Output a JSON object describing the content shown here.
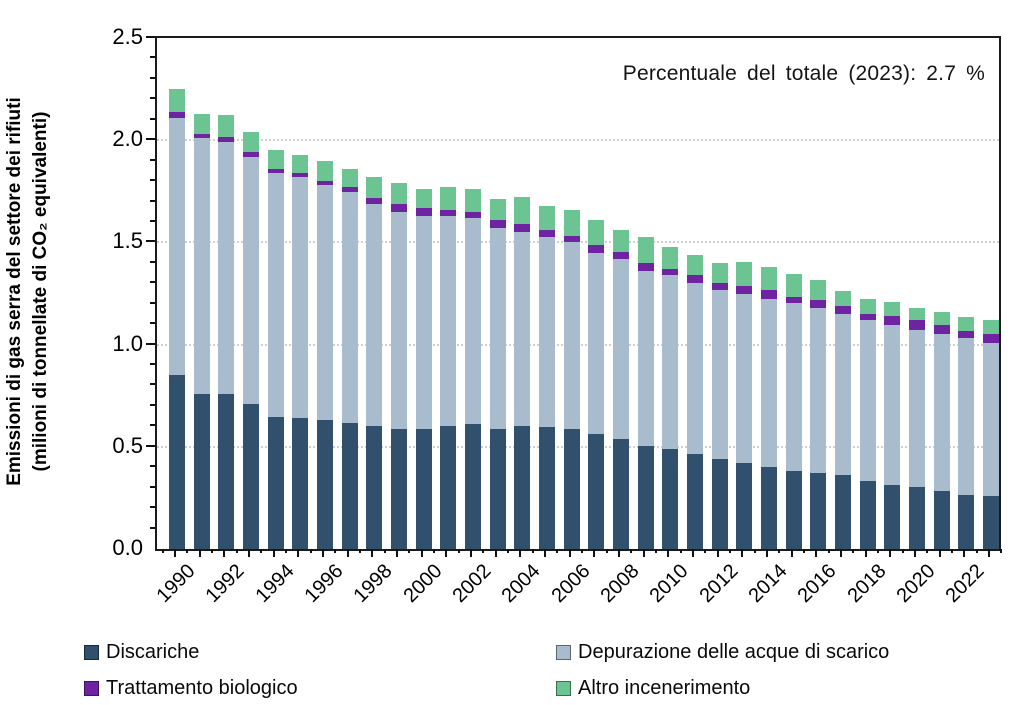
{
  "figure": {
    "ylabel_line1": "Emissioni di gas serra del settore dei rifiuti",
    "ylabel_line2": "(milioni di tonnellate di CO₂ equivalenti)"
  },
  "chart_data": {
    "type": "bar",
    "stacked": true,
    "title": "",
    "annotation": "Percentuale del totale (2023): 2.7 %",
    "ylabel": "Emissioni di gas serra del settore dei rifiuti (milioni di tonnellate di CO₂ equivalenti)",
    "xlabel": "",
    "ylim": [
      0,
      2.5
    ],
    "ytick_labels": [
      "0.0",
      "0.5",
      "1.0",
      "1.5",
      "2.0",
      "2.5"
    ],
    "ytick_major_step": 0.5,
    "ytick_minor_step": 0.1,
    "grid": "horizontal-dotted",
    "legend_position": "bottom",
    "categories": [
      1990,
      1991,
      1992,
      1993,
      1994,
      1995,
      1996,
      1997,
      1998,
      1999,
      2000,
      2001,
      2002,
      2003,
      2004,
      2005,
      2006,
      2007,
      2008,
      2009,
      2010,
      2011,
      2012,
      2013,
      2014,
      2015,
      2016,
      2017,
      2018,
      2019,
      2020,
      2021,
      2022,
      2023
    ],
    "xtick_labels": [
      "1990",
      "1992",
      "1994",
      "1996",
      "1998",
      "2000",
      "2002",
      "2004",
      "2006",
      "2008",
      "2010",
      "2012",
      "2014",
      "2016",
      "2018",
      "2020",
      "2022"
    ],
    "series": [
      {
        "name": "Discariche",
        "color": "#30506E",
        "values": [
          0.85,
          0.76,
          0.76,
          0.71,
          0.645,
          0.64,
          0.63,
          0.615,
          0.6,
          0.585,
          0.585,
          0.6,
          0.61,
          0.585,
          0.6,
          0.595,
          0.585,
          0.565,
          0.54,
          0.505,
          0.49,
          0.465,
          0.44,
          0.42,
          0.4,
          0.38,
          0.37,
          0.36,
          0.335,
          0.315,
          0.305,
          0.285,
          0.265,
          0.26
        ]
      },
      {
        "name": "Depurazione delle acque di scarico",
        "color": "#A8BCCE",
        "values": [
          1.26,
          1.25,
          1.23,
          1.21,
          1.195,
          1.18,
          1.15,
          1.13,
          1.09,
          1.065,
          1.045,
          1.03,
          1.01,
          0.985,
          0.95,
          0.93,
          0.915,
          0.885,
          0.88,
          0.855,
          0.85,
          0.835,
          0.825,
          0.83,
          0.825,
          0.825,
          0.81,
          0.79,
          0.785,
          0.78,
          0.765,
          0.765,
          0.765,
          0.75
        ]
      },
      {
        "name": "Trattamento biologico",
        "color": "#6E23A0",
        "values": [
          0.03,
          0.02,
          0.025,
          0.02,
          0.02,
          0.02,
          0.02,
          0.025,
          0.025,
          0.04,
          0.04,
          0.03,
          0.03,
          0.04,
          0.04,
          0.035,
          0.03,
          0.035,
          0.035,
          0.04,
          0.03,
          0.04,
          0.035,
          0.035,
          0.04,
          0.03,
          0.04,
          0.04,
          0.03,
          0.045,
          0.05,
          0.045,
          0.035,
          0.04
        ]
      },
      {
        "name": "Altro incenerimento",
        "color": "#6CC492",
        "values": [
          0.11,
          0.1,
          0.11,
          0.1,
          0.09,
          0.09,
          0.1,
          0.09,
          0.105,
          0.1,
          0.09,
          0.11,
          0.11,
          0.1,
          0.13,
          0.12,
          0.13,
          0.125,
          0.105,
          0.125,
          0.11,
          0.1,
          0.1,
          0.12,
          0.115,
          0.11,
          0.095,
          0.07,
          0.075,
          0.07,
          0.06,
          0.065,
          0.07,
          0.07
        ]
      }
    ]
  }
}
